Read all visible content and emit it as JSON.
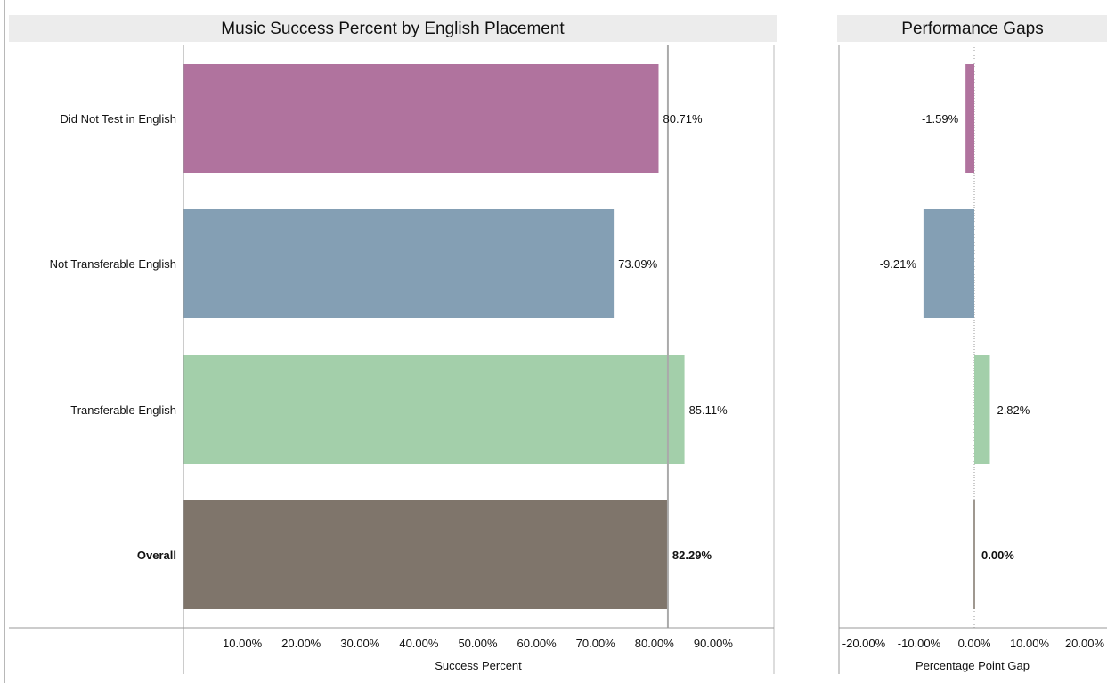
{
  "chart_data": [
    {
      "type": "bar",
      "orientation": "horizontal",
      "title": "Music Success Percent by English Placement",
      "xlabel": "Success Percent",
      "ylabel": "",
      "xlim": [
        0,
        100
      ],
      "x_ticks": [
        "10.00%",
        "20.00%",
        "30.00%",
        "40.00%",
        "50.00%",
        "60.00%",
        "70.00%",
        "80.00%",
        "90.00%"
      ],
      "categories": [
        "Did Not Test in English",
        "Not Transferable English",
        "Transferable English",
        "Overall"
      ],
      "values": [
        80.71,
        73.09,
        85.11,
        82.29
      ],
      "labels": [
        "80.71%",
        "73.09%",
        "85.11%",
        "82.29%"
      ],
      "colors": [
        "#b0739e",
        "#849fb4",
        "#a3cfaa",
        "#7f756b"
      ],
      "bold_categories": [
        "Overall"
      ],
      "reference_line": {
        "value": 82.29,
        "color": "#aaaaaa"
      },
      "grid": false
    },
    {
      "type": "bar",
      "orientation": "horizontal",
      "title": "Performance Gaps",
      "xlabel": "Percentage Point Gap",
      "ylabel": "",
      "xlim": [
        -23,
        23
      ],
      "x_ticks": [
        "-20.00%",
        "-10.00%",
        "0.00%",
        "10.00%",
        "20.00%"
      ],
      "categories": [
        "Did Not Test in English",
        "Not Transferable English",
        "Transferable English",
        "Overall"
      ],
      "values": [
        -1.59,
        -9.21,
        2.82,
        0.0
      ],
      "labels": [
        "-1.59%",
        "-9.21%",
        "2.82%",
        "0.00%"
      ],
      "colors": [
        "#b0739e",
        "#849fb4",
        "#a3cfaa",
        "#7f756b"
      ],
      "bold_categories": [
        "Overall"
      ],
      "zero_line": "dotted",
      "grid": false
    }
  ]
}
